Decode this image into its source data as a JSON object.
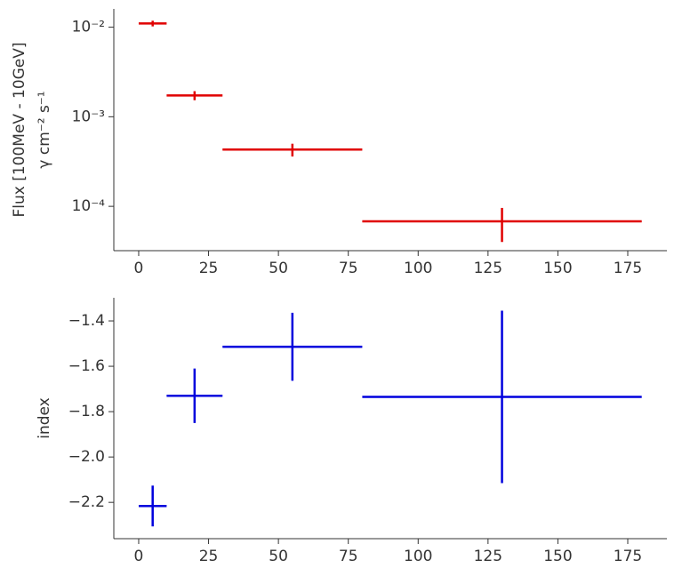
{
  "chart_data": [
    {
      "type": "errorbar",
      "log_y": true,
      "ylabel": [
        "Flux [100MeV - 10GeV]",
        "γ cm⁻² s⁻¹"
      ],
      "series": [
        {
          "color": "#e00000",
          "x": [
            5,
            20,
            55,
            130
          ],
          "xerr": [
            5,
            10,
            25,
            50
          ],
          "values": [
            0.011,
            0.00173,
            0.00043,
            6.8e-05
          ],
          "yerr": [
            0.0008,
            0.0002,
            7e-05,
            2.8e-05
          ]
        }
      ],
      "xlim": [
        -8.9,
        189
      ],
      "xticks": [
        0,
        25,
        50,
        75,
        100,
        125,
        150,
        175
      ],
      "ylim": [
        3.2e-05,
        0.016
      ],
      "yticks": [
        {
          "value": 0.01,
          "label": "10⁻²"
        },
        {
          "value": 0.001,
          "label": "10⁻³"
        },
        {
          "value": 0.0001,
          "label": "10⁻⁴"
        }
      ]
    },
    {
      "type": "errorbar",
      "log_y": false,
      "ylabel": [
        "index"
      ],
      "series": [
        {
          "color": "#0000dd",
          "x": [
            5,
            20,
            55,
            130
          ],
          "xerr": [
            5,
            10,
            25,
            50
          ],
          "values": [
            -2.216,
            -1.73,
            -1.514,
            -1.735
          ],
          "yerr": [
            0.09,
            0.12,
            0.15,
            0.38
          ]
        }
      ],
      "xlim": [
        -8.9,
        189
      ],
      "xticks": [
        0,
        25,
        50,
        75,
        100,
        125,
        150,
        175
      ],
      "ylim": [
        -2.36,
        -1.298
      ],
      "yticks": [
        {
          "value": -2.2,
          "label": "−2.2"
        },
        {
          "value": -2.0,
          "label": "−2.0"
        },
        {
          "value": -1.8,
          "label": "−1.8"
        },
        {
          "value": -1.6,
          "label": "−1.6"
        },
        {
          "value": -1.4,
          "label": "−1.4"
        }
      ]
    }
  ]
}
